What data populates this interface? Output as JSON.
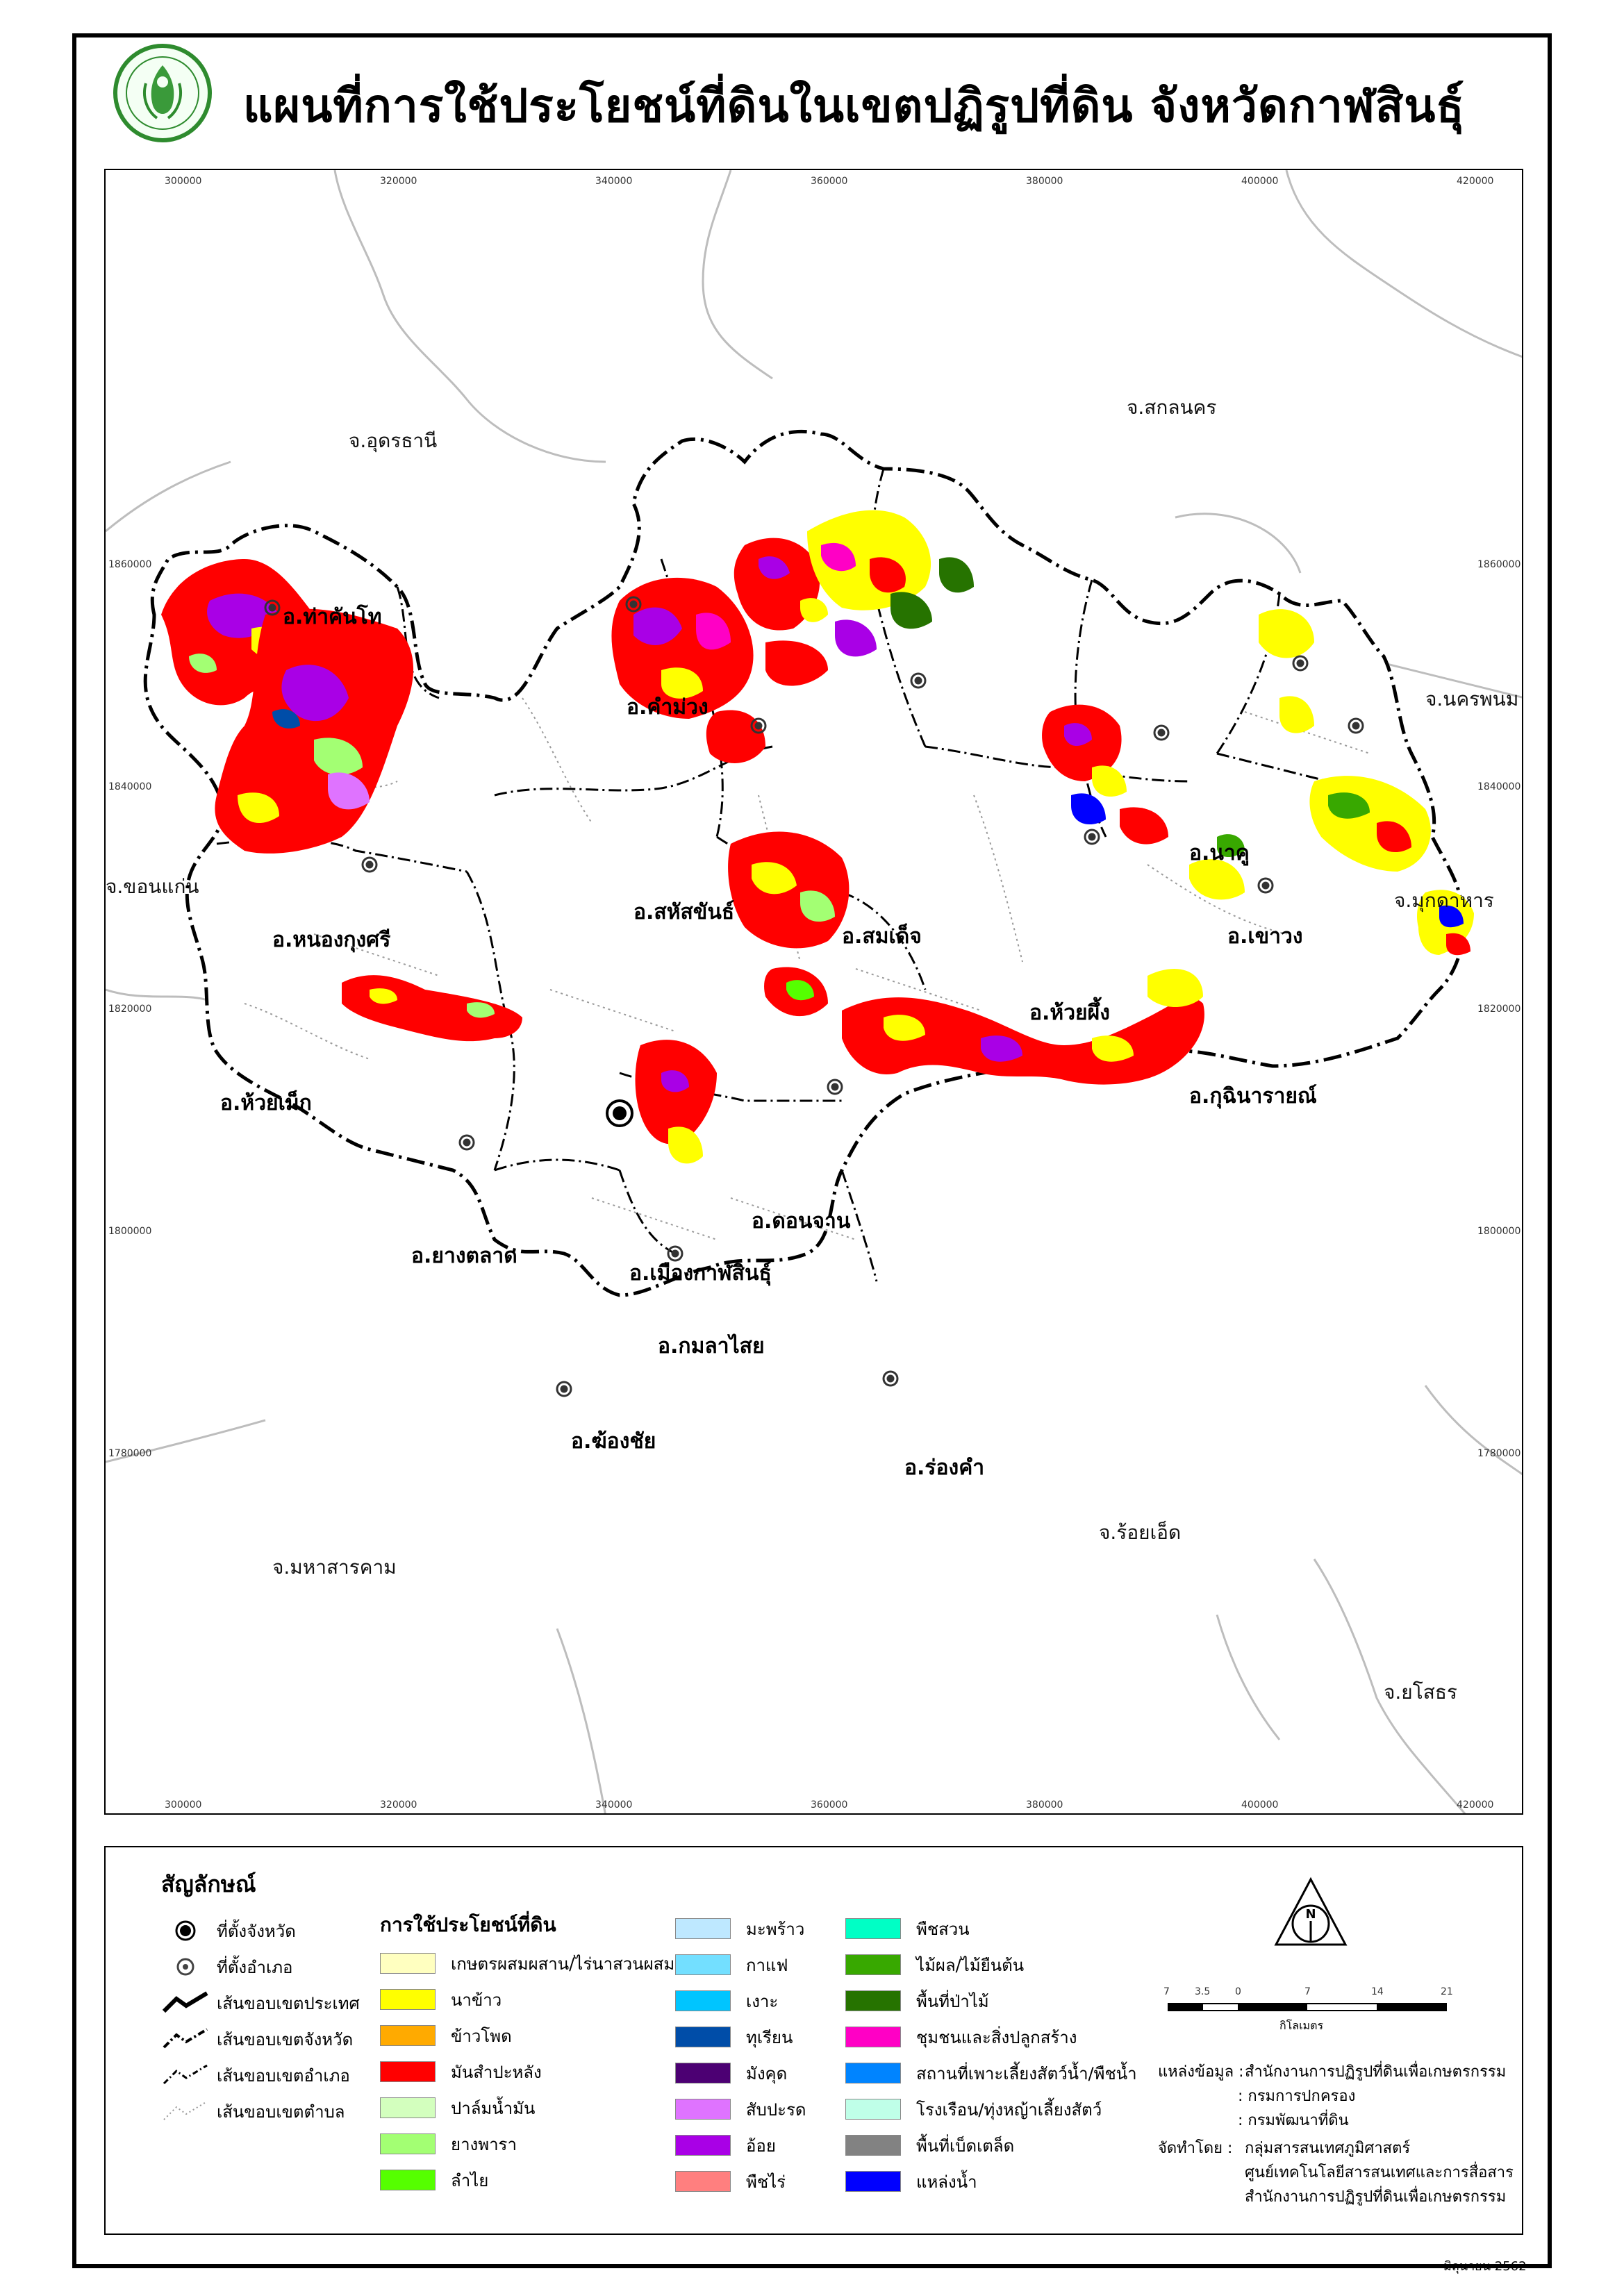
{
  "title": "แผนที่การใช้ประโยชน์ที่ดินในเขตปฏิรูปที่ดิน จังหวัดกาฬสินธุ์",
  "logo": {
    "icon": "alro-seal-icon",
    "text": "สำนักงานการปฏิรูปที่ดินเพื่อเกษตรกรรม"
  },
  "map": {
    "x_ticks": [
      "300000",
      "320000",
      "340000",
      "360000",
      "380000",
      "400000",
      "420000"
    ],
    "y_ticks": [
      "1860000",
      "1840000",
      "1820000",
      "1800000",
      "1780000"
    ],
    "provinces": [
      "จ.อุดรธานี",
      "จ.สกลนคร",
      "จ.นครพนม",
      "จ.ขอนแก่น",
      "จ.มุกดาหาร",
      "จ.มหาสารคาม",
      "จ.ร้อยเอ็ด",
      "จ.ยโสธร"
    ],
    "districts": [
      "อ.ท่าคันโท",
      "อ.คำม่วง",
      "อ.หนองกุงศรี",
      "อ.สหัสขันธ์",
      "อ.สมเด็จ",
      "อ.นาคู",
      "อ.เขาวง",
      "อ.ห้วยผึ้ง",
      "อ.กุฉินารายณ์",
      "อ.ห้วยเม็ก",
      "อ.ยางตลาด",
      "อ.เมืองกาฬสินธุ์",
      "อ.ดอนจาน",
      "อ.กมลาไสย",
      "อ.ฆ้องชัย",
      "อ.ร่องคำ"
    ]
  },
  "legend": {
    "title": "สัญลักษณ์",
    "symbols": [
      {
        "icon": "province-seat-icon",
        "label": "ที่ตั้งจังหวัด"
      },
      {
        "icon": "district-seat-icon",
        "label": "ที่ตั้งอำเภอ"
      },
      {
        "icon": "country-boundary-line-icon",
        "label": "เส้นขอบเขตประเทศ"
      },
      {
        "icon": "province-boundary-line-icon",
        "label": "เส้นขอบเขตจังหวัด"
      },
      {
        "icon": "district-boundary-line-icon",
        "label": "เส้นขอบเขตอำเภอ"
      },
      {
        "icon": "subdistrict-boundary-line-icon",
        "label": "เส้นขอบเขตตำบล"
      }
    ],
    "landuse_title": "การใช้ประโยชน์ที่ดิน",
    "landuse_col1": [
      {
        "label": "เกษตรผสมผสาน/ไร่นาสวนผสม",
        "color": "#ffffc0"
      },
      {
        "label": "นาข้าว",
        "color": "#ffff00"
      },
      {
        "label": "ข้าวโพด",
        "color": "#ffaa00"
      },
      {
        "label": "มันสำปะหลัง",
        "color": "#ff0000"
      },
      {
        "label": "ปาล์มน้ำมัน",
        "color": "#d3ffbe"
      },
      {
        "label": "ยางพารา",
        "color": "#a3ff73"
      },
      {
        "label": "ลำไย",
        "color": "#55ff00"
      }
    ],
    "landuse_col2": [
      {
        "label": "มะพร้าว",
        "color": "#bee8ff"
      },
      {
        "label": "กาแฟ",
        "color": "#73dfff"
      },
      {
        "label": "เงาะ",
        "color": "#00c5ff"
      },
      {
        "label": "ทุเรียน",
        "color": "#004da8"
      },
      {
        "label": "มังคุด",
        "color": "#4c0073"
      },
      {
        "label": "สับปะรด",
        "color": "#df73ff"
      },
      {
        "label": "อ้อย",
        "color": "#a900e6"
      },
      {
        "label": "พืชไร่",
        "color": "#ff7f7f"
      }
    ],
    "landuse_col3": [
      {
        "label": "พืชสวน",
        "color": "#00ffc5"
      },
      {
        "label": "ไม้ผล/ไม้ยืนต้น",
        "color": "#38a800"
      },
      {
        "label": "พื้นที่ป่าไม้",
        "color": "#267300"
      },
      {
        "label": "ชุมชนและสิ่งปลูกสร้าง",
        "color": "#ff00c5"
      },
      {
        "label": "สถานที่เพาะเลี้ยงสัตว์น้ำ/พืชน้ำ",
        "color": "#0084ff"
      },
      {
        "label": "โรงเรือน/ทุ่งหญ้าเลี้ยงสัตว์",
        "color": "#bfffe8"
      },
      {
        "label": "พื้นที่เบ็ดเตล็ด",
        "color": "#828282"
      },
      {
        "label": "แหล่งน้ำ",
        "color": "#0000ff"
      }
    ]
  },
  "scale": {
    "ticks": [
      "7",
      "3.5",
      "0",
      "7",
      "14",
      "21"
    ],
    "unit": "กิโลเมตร"
  },
  "credits": {
    "source_label": "แหล่งข้อมูล :",
    "sources": [
      "สำนักงานการปฏิรูปที่ดินเพื่อเกษตรกรรม",
      ": กรมการปกครอง",
      ": กรมพัฒนาที่ดิน"
    ],
    "producer_label": "จัดทำโดย :",
    "producers": [
      "กลุ่มสารสนเทศภูมิศาสตร์",
      "ศูนย์เทคโนโลยีสารสนเทศและการสื่อสาร",
      "สำนักงานการปฏิรูปที่ดินเพื่อเกษตรกรรม"
    ]
  },
  "date": "มิถุนายน 2562"
}
